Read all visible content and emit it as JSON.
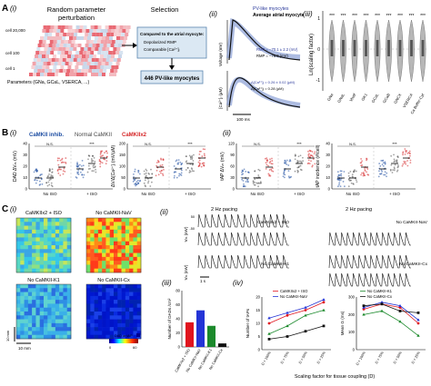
{
  "panels": {
    "A_label": "A",
    "A_i": "(i)",
    "A_ii": "(ii)",
    "A_iii": "(iii)",
    "B_label": "B",
    "B_i": "(i)",
    "B_ii": "(ii)",
    "C_label": "C",
    "C_i": "(i)",
    "C_ii": "(ii)",
    "C_iii": "(iii)",
    "C_iv": "(iv)"
  },
  "A": {
    "i": {
      "title_left": "Random parameter",
      "title_left2": "perturbation",
      "title_right": "Selection",
      "cell_labels": [
        "cell 20,000",
        "cell 100",
        "cell 1"
      ],
      "params_label": "Parameters (GNa, GCaL, VSERCA, ...)",
      "compare_title": "Compared to the atrial myocyte:",
      "compare_item1": "Depolarized RMP",
      "compare_item2": "Comparable [Ca²⁺]ᵢ",
      "result": "446 PV-like myocytes"
    },
    "ii": {
      "legend1": "PV-like myocytes",
      "legend2": "Average atrial myocyte",
      "ylabel_top": "Voltage (mV)",
      "ylabel_bottom": "[Ca²⁺]ᵢ (μM)",
      "rmp1": "RMP = −70.1 ± 2.2 (mV)",
      "rmp2": "RMP = −79.9 (mV)",
      "dca1": "Δ[Ca²⁺]ᵢ = 0.26 ± 0.02 (μM)",
      "dca2": "Δ[Ca²⁺]ᵢ = 0.28 (μM)",
      "scalebar": "100 ms"
    },
    "iii": {
      "ylabel": "Ln(scaling factor)",
      "yticks": [
        "1",
        "0",
        "-1"
      ],
      "categories": [
        "GNa",
        "GNaL",
        "Vhalf",
        "GK1",
        "GCaL",
        "GCaB",
        "GNCX",
        "VSERCA",
        "Ca Buffer-Cyt"
      ],
      "stars": "***"
    }
  },
  "B": {
    "legend": {
      "inhib": "CaMKII inhib.",
      "normal": "Normal CaMKII",
      "x2": "CaMKIIx2"
    },
    "i": {
      "plot1_ylabel": "DAD ΔVₘ (mV)",
      "plot2_ylabel": "ΔV/Δ[Ca²⁺]ᵢ (mV/μM)",
      "plot1_yticks": [
        "40",
        "30",
        "20",
        "10",
        "0"
      ],
      "plot2_yticks": [
        "200",
        "150",
        "100",
        "50",
        "0"
      ]
    },
    "ii": {
      "plot1_ylabel": "tAP ΔVₘ (mV)",
      "plot2_ylabel": "tAP incidence (#/cell)",
      "plot1_yticks": [
        "120",
        "90",
        "60",
        "30",
        "0"
      ],
      "plot2_yticks": [
        "40",
        "30",
        "20",
        "10",
        "0"
      ]
    },
    "x_no_iso": "No ISO",
    "x_iso": "+ ISO",
    "ns": "N.S.",
    "sig": "***"
  },
  "C": {
    "i": {
      "maps": [
        "CaMKIIx2 + ISO",
        "No CaMKII-NaV",
        "No CaMKII-K1",
        "No CaMKII-Cx"
      ],
      "scalebar": "10 mm",
      "time_label": "10 mm",
      "colorbar_label": "Time (s)",
      "colorbar_min": "0",
      "colorbar_max": "1",
      "cb_left": "0",
      "cb_right": "60",
      "cb_mid": "DAD or tAP"
    },
    "ii": {
      "pacing_left": "2 Hz pacing",
      "pacing_right": "2 Hz pacing",
      "label1": "CaMKIIx2 + ISO",
      "label2": "No CaMKII-NaV",
      "label3": "No CaMKII-K1",
      "label4": "No CaMKII-Cx",
      "ylabel": "Vₘ (mV)",
      "tick_top": "50",
      "tick_bot": "-50",
      "scalebar": "1 s"
    },
    "iii": {
      "ylabel": "Number of DADs /cm²",
      "yticks": [
        "80",
        "60",
        "40",
        "20",
        "0"
      ]
    },
    "iv": {
      "legend": [
        "CaMKIIx2 + ISO",
        "No CaMKII-NaV",
        "No CaMKII-K1",
        "No CaMKII-Cx"
      ],
      "plot1_ylabel": "Number of tAPs",
      "plot2_ylabel": "Mean G (ms)",
      "x_categories": [
        "D = 100%",
        "D = 75%",
        "D = 50%",
        "D = 25%"
      ],
      "xlabel": "Scaling factor for tissue coupling (D)",
      "plot1_yticks": [
        "20",
        "15",
        "10",
        "5",
        "0"
      ],
      "plot2_yticks": [
        "300",
        "200",
        "100",
        "0"
      ]
    }
  },
  "colors": {
    "inhib": "#1f4fa3",
    "normal": "#555555",
    "x2": "#d62728",
    "pv_blue": "#2b3a9c",
    "avg_dark": "#111111",
    "bar_red": "#e0141e",
    "bar_blue": "#2434d6",
    "bar_green": "#1c8a2c",
    "bar_black": "#111111"
  },
  "chart_data": [
    {
      "type": "bar",
      "title": "",
      "xlabel": "",
      "ylabel": "Number of DADs /cm²",
      "ylim": [
        0,
        80
      ],
      "categories": [
        "CaMKIIx2 + ISO",
        "No CaMKII-NaV",
        "No CaMKII-K1",
        "No CaMKII-Cx"
      ],
      "values": [
        35,
        52,
        30,
        5
      ]
    },
    {
      "type": "line",
      "title": "",
      "ylabel": "Number of tAPs",
      "ylim": [
        0,
        20
      ],
      "x": [
        "D = 100%",
        "D = 75%",
        "D = 50%",
        "D = 25%"
      ],
      "series": [
        {
          "name": "CaMKIIx2 + ISO",
          "values": [
            10,
            13,
            15,
            18
          ]
        },
        {
          "name": "No CaMKII-NaV",
          "values": [
            12,
            14,
            16,
            19
          ]
        },
        {
          "name": "No CaMKII-K1",
          "values": [
            6,
            9,
            13,
            15
          ]
        },
        {
          "name": "No CaMKII-Cx",
          "values": [
            4,
            5,
            7,
            9
          ]
        }
      ]
    },
    {
      "type": "line",
      "title": "",
      "ylabel": "Mean G (ms)",
      "ylim": [
        0,
        300
      ],
      "x": [
        "D = 100%",
        "D = 75%",
        "D = 50%",
        "D = 25%"
      ],
      "series": [
        {
          "name": "CaMKIIx2 + ISO",
          "values": [
            230,
            260,
            240,
            150
          ]
        },
        {
          "name": "No CaMKII-NaV",
          "values": [
            240,
            270,
            250,
            170
          ]
        },
        {
          "name": "No CaMKII-K1",
          "values": [
            200,
            220,
            160,
            80
          ]
        },
        {
          "name": "No CaMKII-Cx",
          "values": [
            250,
            260,
            220,
            210
          ]
        }
      ]
    }
  ]
}
